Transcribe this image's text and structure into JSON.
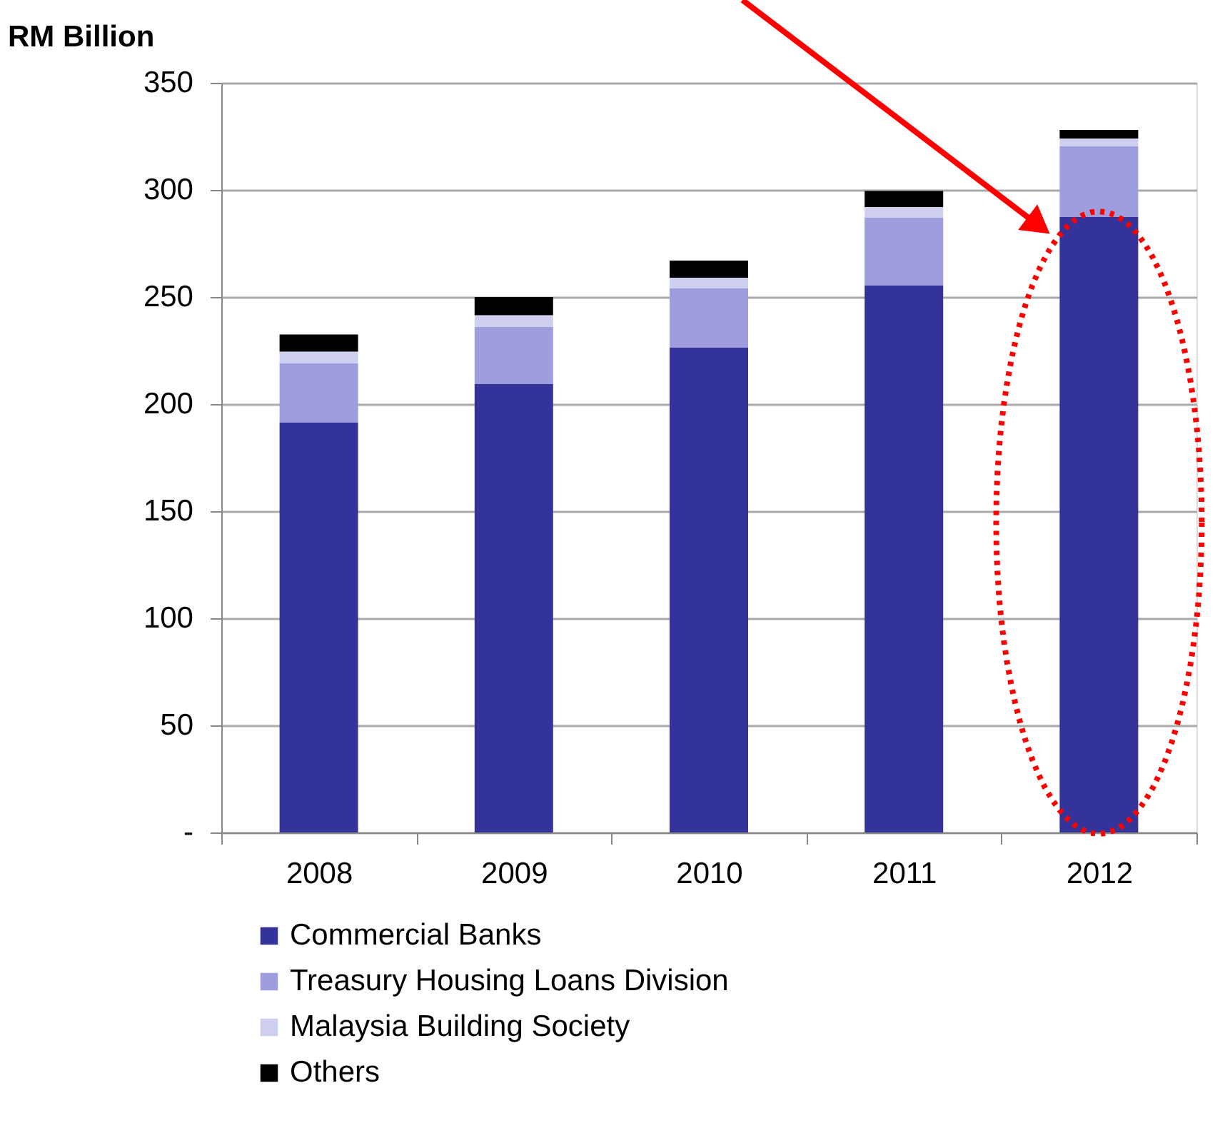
{
  "chart_data": {
    "type": "bar",
    "stacked": true,
    "ylabel": "RM Billion",
    "categories": [
      "2008",
      "2009",
      "2010",
      "2011",
      "2012"
    ],
    "series": [
      {
        "name": "Commercial Banks",
        "color": "#333399",
        "values": [
          191.5,
          209.5,
          226.5,
          255.5,
          287.5
        ]
      },
      {
        "name": "Treasury Housing Loans Division",
        "color": "#9e9edf",
        "values": [
          27.5,
          26.5,
          27.5,
          31.5,
          33
        ]
      },
      {
        "name": "Malaysia Building Society",
        "color": "#cfcfef",
        "values": [
          5.5,
          5.5,
          5,
          5,
          3.5
        ]
      },
      {
        "name": "Others",
        "color": "#000000",
        "values": [
          8,
          8.5,
          8,
          7.5,
          4
        ]
      }
    ],
    "ylim": [
      0,
      350
    ],
    "yticks": [
      {
        "value": 0,
        "label": "-"
      },
      50,
      100,
      150,
      200,
      250,
      300,
      350
    ],
    "grid": "y",
    "legend": "bottom"
  }
}
